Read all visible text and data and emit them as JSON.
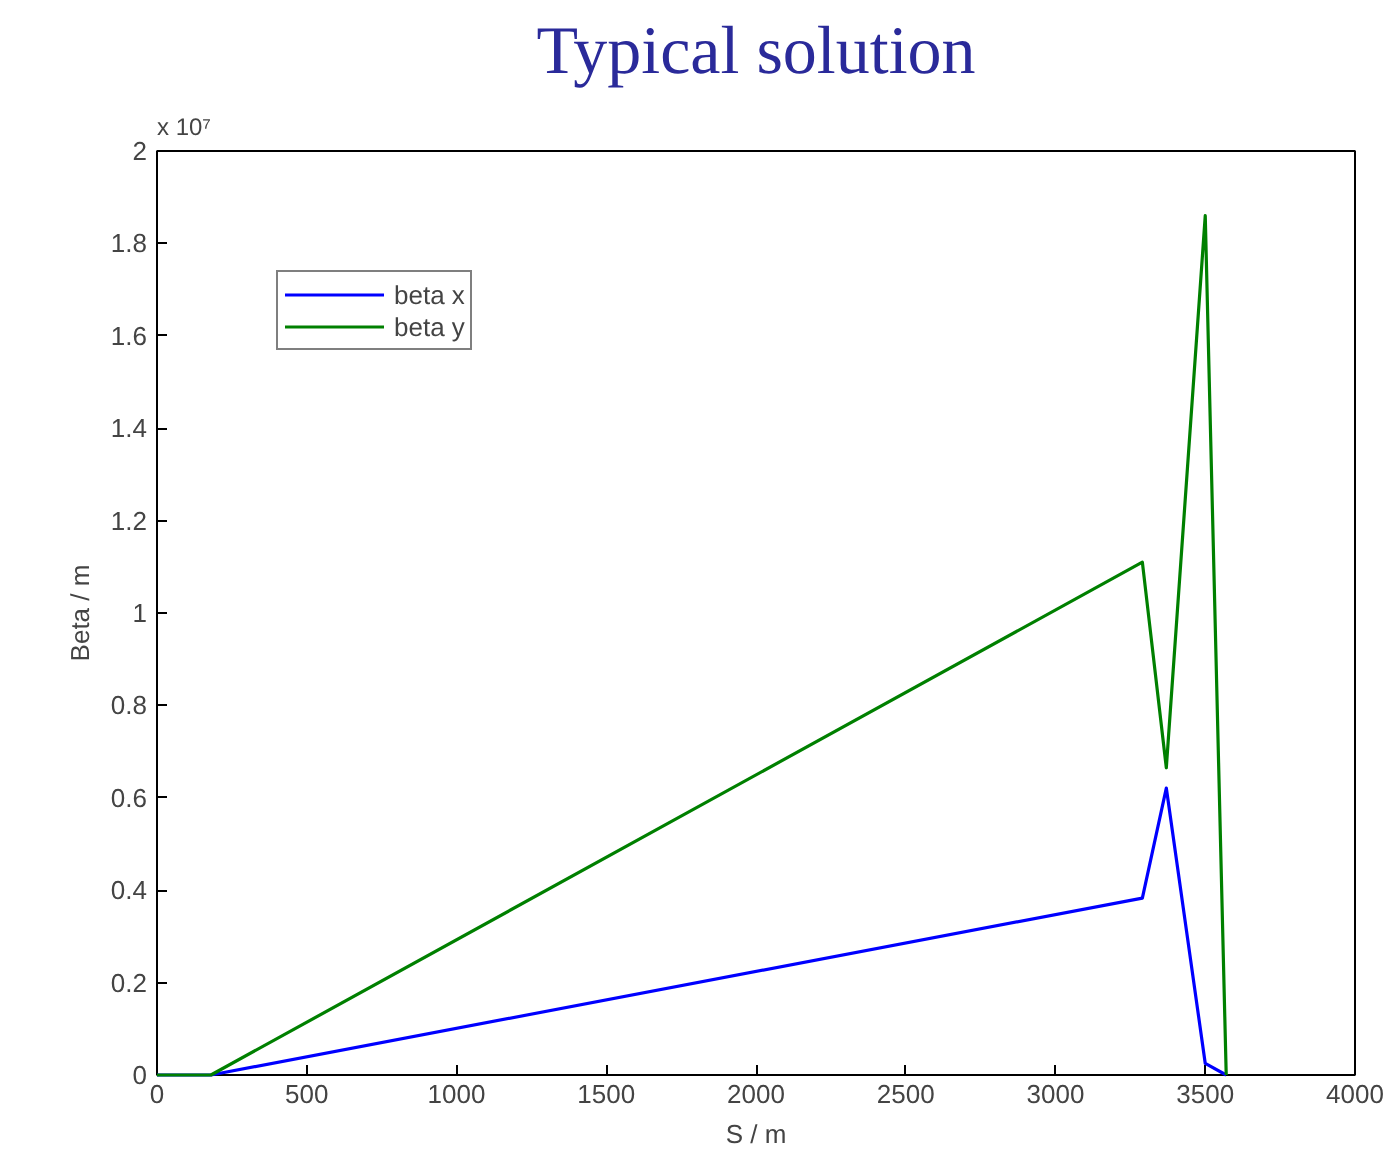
{
  "chart_data": {
    "type": "line",
    "title": "Typical solution",
    "xlabel": "S / m",
    "ylabel": "Beta / m",
    "annotations": [
      "x 10⁷"
    ],
    "xlim": [
      0,
      4000
    ],
    "xticks": [
      0,
      500,
      1000,
      1500,
      2000,
      2500,
      3000,
      3500,
      4000
    ],
    "ylim": [
      0,
      2
    ],
    "yticks": [
      0,
      0.2,
      0.4,
      0.6,
      0.8,
      1,
      1.2,
      1.4,
      1.6,
      1.8,
      2
    ],
    "grid": false,
    "legend": "top left",
    "marker": "none",
    "line_style": "solid",
    "series": [
      {
        "name": "beta x",
        "color": "#0000ff",
        "x": [
          0,
          180,
          3290,
          3370,
          3500,
          3570
        ],
        "values": [
          0,
          0,
          0.383,
          0.621,
          0.025,
          0
        ]
      },
      {
        "name": "beta y",
        "color": "#008000",
        "x": [
          0,
          180,
          3290,
          3370,
          3500,
          3570
        ],
        "values": [
          0,
          0,
          1.11,
          0.665,
          1.86,
          0
        ]
      }
    ]
  }
}
